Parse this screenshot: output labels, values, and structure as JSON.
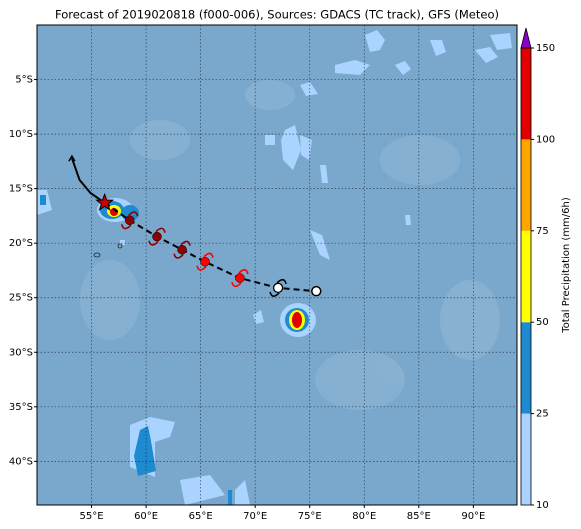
{
  "map": {
    "title": "Forecast of 2019020818 (f000-006), Sources: GDACS (TC track), GFS (Meteo)",
    "lon_range": [
      50,
      94
    ],
    "lat_range": [
      0,
      -44
    ],
    "lon_ticks": [
      {
        "value": 55,
        "label": "55°E"
      },
      {
        "value": 60,
        "label": "60°E"
      },
      {
        "value": 65,
        "label": "65°E"
      },
      {
        "value": 70,
        "label": "70°E"
      },
      {
        "value": 75,
        "label": "75°E"
      },
      {
        "value": 80,
        "label": "80°E"
      },
      {
        "value": 85,
        "label": "85°E"
      },
      {
        "value": 90,
        "label": "90°E"
      }
    ],
    "lat_ticks": [
      {
        "value": -5,
        "label": "5°S"
      },
      {
        "value": -10,
        "label": "10°S"
      },
      {
        "value": -15,
        "label": "15°S"
      },
      {
        "value": -20,
        "label": "20°S"
      },
      {
        "value": -25,
        "label": "25°S"
      },
      {
        "value": -30,
        "label": "30°S"
      },
      {
        "value": -35,
        "label": "35°S"
      },
      {
        "value": -40,
        "label": "40°S"
      }
    ],
    "colorbar": {
      "label": "Total Precipitation (mm/6h)",
      "levels": [
        10,
        25,
        50,
        75,
        100,
        150
      ],
      "colors": [
        "#aad4ff",
        "#1e8ad0",
        "#ffff00",
        "#ffa500",
        "#e00000"
      ],
      "over_color": "#8a00c8"
    },
    "track": {
      "past": [
        {
          "lon": 53.2,
          "lat": -12.2
        },
        {
          "lon": 53.9,
          "lat": -14.2
        },
        {
          "lon": 54.9,
          "lat": -15.4
        },
        {
          "lon": 56.2,
          "lat": -16.3
        }
      ],
      "forecast": [
        {
          "lon": 56.2,
          "lat": -16.3,
          "marker": "star",
          "color": "#cc0000"
        },
        {
          "lon": 58.5,
          "lat": -17.9,
          "marker": "cyclone",
          "color": "#8b0000"
        },
        {
          "lon": 61.0,
          "lat": -19.4,
          "marker": "cyclone",
          "color": "#8b0000"
        },
        {
          "lon": 63.3,
          "lat": -20.6,
          "marker": "cyclone",
          "color": "#8b0000"
        },
        {
          "lon": 65.4,
          "lat": -21.7,
          "marker": "cyclone",
          "color": "#ff0000"
        },
        {
          "lon": 68.6,
          "lat": -23.2,
          "marker": "cyclone",
          "color": "#ff0000"
        },
        {
          "lon": 72.1,
          "lat": -24.1,
          "marker": "cyclone",
          "color": "#ffffff"
        },
        {
          "lon": 75.6,
          "lat": -24.4,
          "marker": "circle",
          "color": "#ffffff"
        }
      ]
    }
  }
}
